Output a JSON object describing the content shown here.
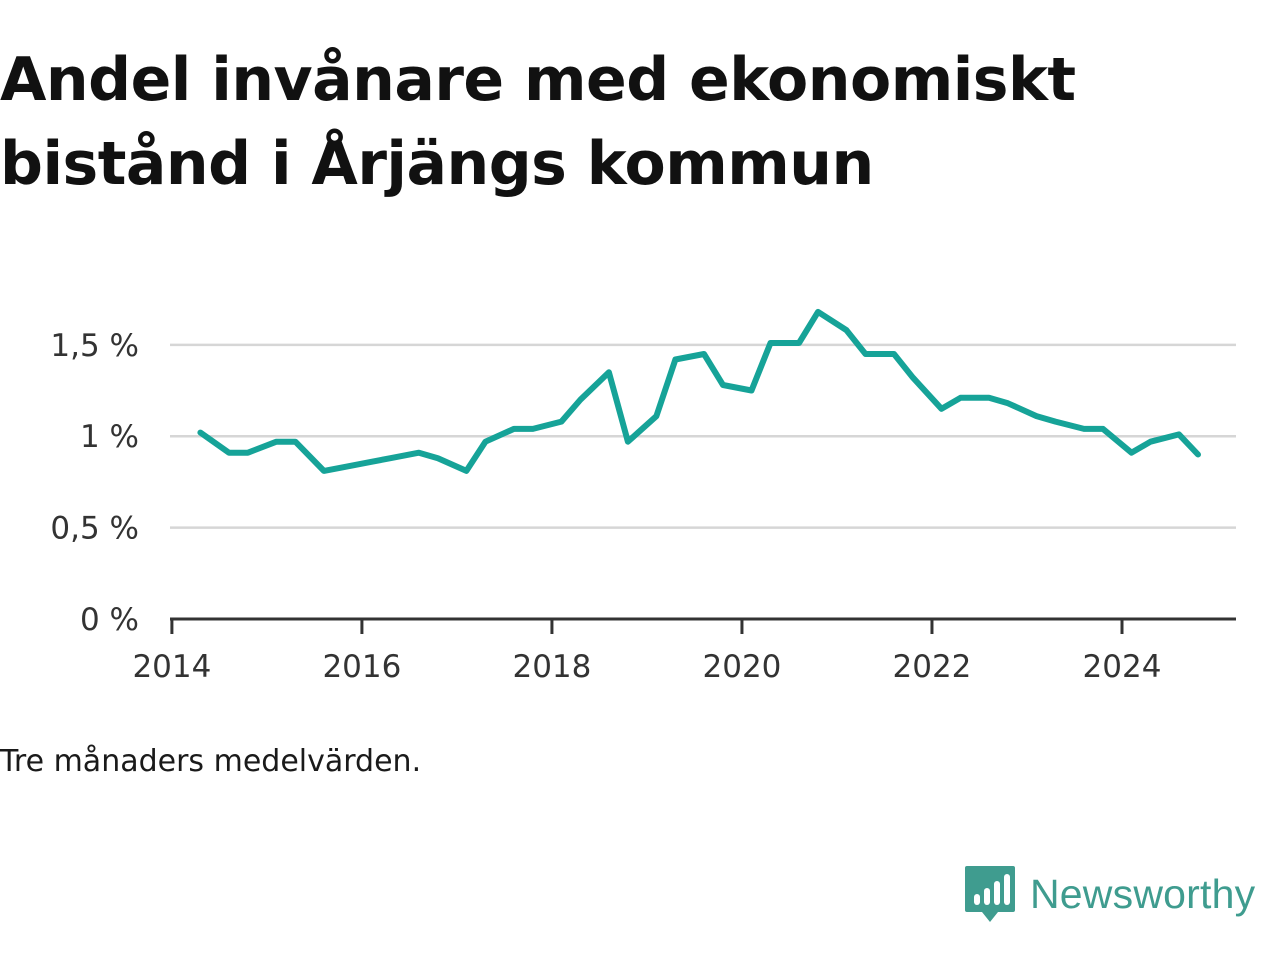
{
  "title_line1": "Andel invånare med ekonomiskt",
  "title_line2": "bistånd i Årjängs kommun",
  "footnote": "Tre månaders medelvärden.",
  "brand": {
    "name": "Newsworthy",
    "icon": "bar-chart-speech-bubble-icon",
    "color": "#3f9c8f"
  },
  "chart_data": {
    "type": "line",
    "title": "Andel invånare med ekonomiskt bistånd i Årjängs kommun",
    "xlabel": "",
    "ylabel": "",
    "xlim": [
      2013.98,
      2025.2
    ],
    "ylim": [
      0,
      1.8
    ],
    "grid": true,
    "legend": "none",
    "y_ticks": [
      {
        "value": 0,
        "label": "0 %"
      },
      {
        "value": 0.5,
        "label": "0,5 %"
      },
      {
        "value": 1,
        "label": "1 %"
      },
      {
        "value": 1.5,
        "label": "1,5 %"
      }
    ],
    "x_ticks": [
      {
        "value": 2014,
        "label": "2014"
      },
      {
        "value": 2016,
        "label": "2016"
      },
      {
        "value": 2018,
        "label": "2018"
      },
      {
        "value": 2020,
        "label": "2020"
      },
      {
        "value": 2022,
        "label": "2022"
      },
      {
        "value": 2024,
        "label": "2024"
      }
    ],
    "series": [
      {
        "color": "#16a398",
        "points": [
          [
            2014.3,
            1.02
          ],
          [
            2014.6,
            0.91
          ],
          [
            2014.8,
            0.91
          ],
          [
            2015.1,
            0.97
          ],
          [
            2015.3,
            0.97
          ],
          [
            2015.6,
            0.81
          ],
          [
            2015.8,
            0.83
          ],
          [
            2016.1,
            0.86
          ],
          [
            2016.3,
            0.88
          ],
          [
            2016.6,
            0.91
          ],
          [
            2016.8,
            0.88
          ],
          [
            2017.1,
            0.81
          ],
          [
            2017.3,
            0.97
          ],
          [
            2017.6,
            1.04
          ],
          [
            2017.8,
            1.04
          ],
          [
            2018.1,
            1.08
          ],
          [
            2018.3,
            1.2
          ],
          [
            2018.6,
            1.35
          ],
          [
            2018.8,
            0.97
          ],
          [
            2019.1,
            1.11
          ],
          [
            2019.3,
            1.42
          ],
          [
            2019.6,
            1.45
          ],
          [
            2019.8,
            1.28
          ],
          [
            2020.1,
            1.25
          ],
          [
            2020.3,
            1.51
          ],
          [
            2020.6,
            1.51
          ],
          [
            2020.8,
            1.68
          ],
          [
            2021.1,
            1.58
          ],
          [
            2021.3,
            1.45
          ],
          [
            2021.6,
            1.45
          ],
          [
            2021.8,
            1.32
          ],
          [
            2022.1,
            1.15
          ],
          [
            2022.3,
            1.21
          ],
          [
            2022.6,
            1.21
          ],
          [
            2022.8,
            1.18
          ],
          [
            2023.1,
            1.11
          ],
          [
            2023.3,
            1.08
          ],
          [
            2023.6,
            1.04
          ],
          [
            2023.8,
            1.04
          ],
          [
            2024.1,
            0.91
          ],
          [
            2024.3,
            0.97
          ],
          [
            2024.6,
            1.01
          ],
          [
            2024.8,
            0.9
          ]
        ]
      }
    ]
  }
}
